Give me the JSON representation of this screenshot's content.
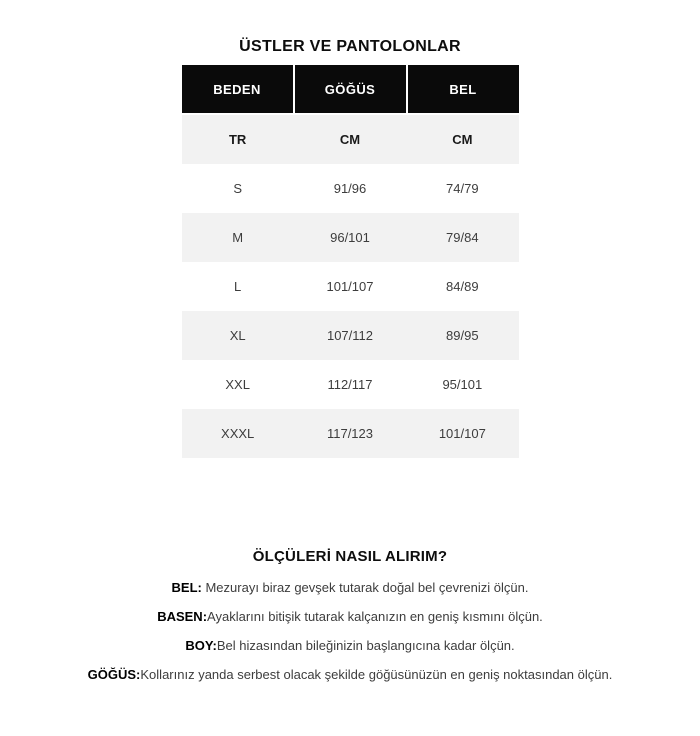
{
  "title": "ÜSTLER VE PANTOLONLAR",
  "size_table": {
    "columns": {
      "size": "BEDEN",
      "chest": "GÖĞÜS",
      "waist": "BEL"
    },
    "unit_row": {
      "size": "TR",
      "chest": "CM",
      "waist": "CM"
    },
    "rows": [
      {
        "size": "S",
        "chest": "91/96",
        "waist": "74/79"
      },
      {
        "size": "M",
        "chest": "96/101",
        "waist": "79/84"
      },
      {
        "size": "L",
        "chest": "101/107",
        "waist": "84/89"
      },
      {
        "size": "XL",
        "chest": "107/112",
        "waist": "89/95"
      },
      {
        "size": "XXL",
        "chest": "112/117",
        "waist": "95/101"
      },
      {
        "size": "XXXL",
        "chest": "117/123",
        "waist": "101/107"
      }
    ]
  },
  "measure_guide": {
    "heading": "ÖLÇÜLERİ NASIL ALIRIM?",
    "items": [
      {
        "label": "BEL:",
        "text": " Mezurayı biraz gevşek tutarak doğal bel çevrenizi ölçün."
      },
      {
        "label": "BASEN:",
        "text": "Ayaklarını bitişik tutarak kalçanızın en geniş kısmını ölçün."
      },
      {
        "label": "BOY:",
        "text": "Bel hizasından bileğinizin başlangıcına kadar ölçün."
      },
      {
        "label": "GÖĞÜS:",
        "text": "Kollarınız yanda serbest olacak şekilde göğüsünüzün en geniş noktasından ölçün."
      }
    ]
  },
  "colors": {
    "header_bg": "#0a0a0a",
    "header_text": "#ffffff",
    "stripe_bg": "#f2f2f2",
    "body_text": "#3d3d3d",
    "page_bg": "#ffffff"
  }
}
